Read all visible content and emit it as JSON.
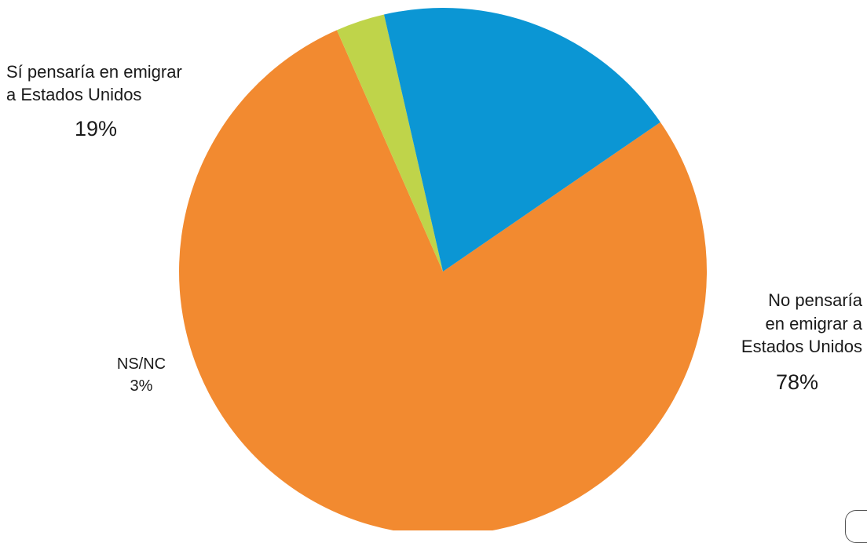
{
  "chart_data": {
    "type": "pie",
    "slices": [
      {
        "label": "No pensaría en emigrar a Estados Unidos",
        "value": 78,
        "display": "78%",
        "color": "#F28A30"
      },
      {
        "label": "NS/NC",
        "value": 3,
        "display": "3%",
        "color": "#BFD44A"
      },
      {
        "label": "Sí pensaría en emigrar a Estados Unidos",
        "value": 19,
        "display": "19%",
        "color": "#0B96D4"
      }
    ],
    "title": "",
    "legend": "none (labels placed beside slices)"
  },
  "labels": {
    "si": {
      "line1": "Sí pensaría en emigrar",
      "line2": "a Estados Unidos",
      "pct": "19%"
    },
    "no": {
      "line1": "No pensaría",
      "line2": "en emigrar a",
      "line3": "Estados Unidos",
      "pct": "78%"
    },
    "ns": {
      "line1": "NS/NC",
      "pct": "3%"
    }
  }
}
